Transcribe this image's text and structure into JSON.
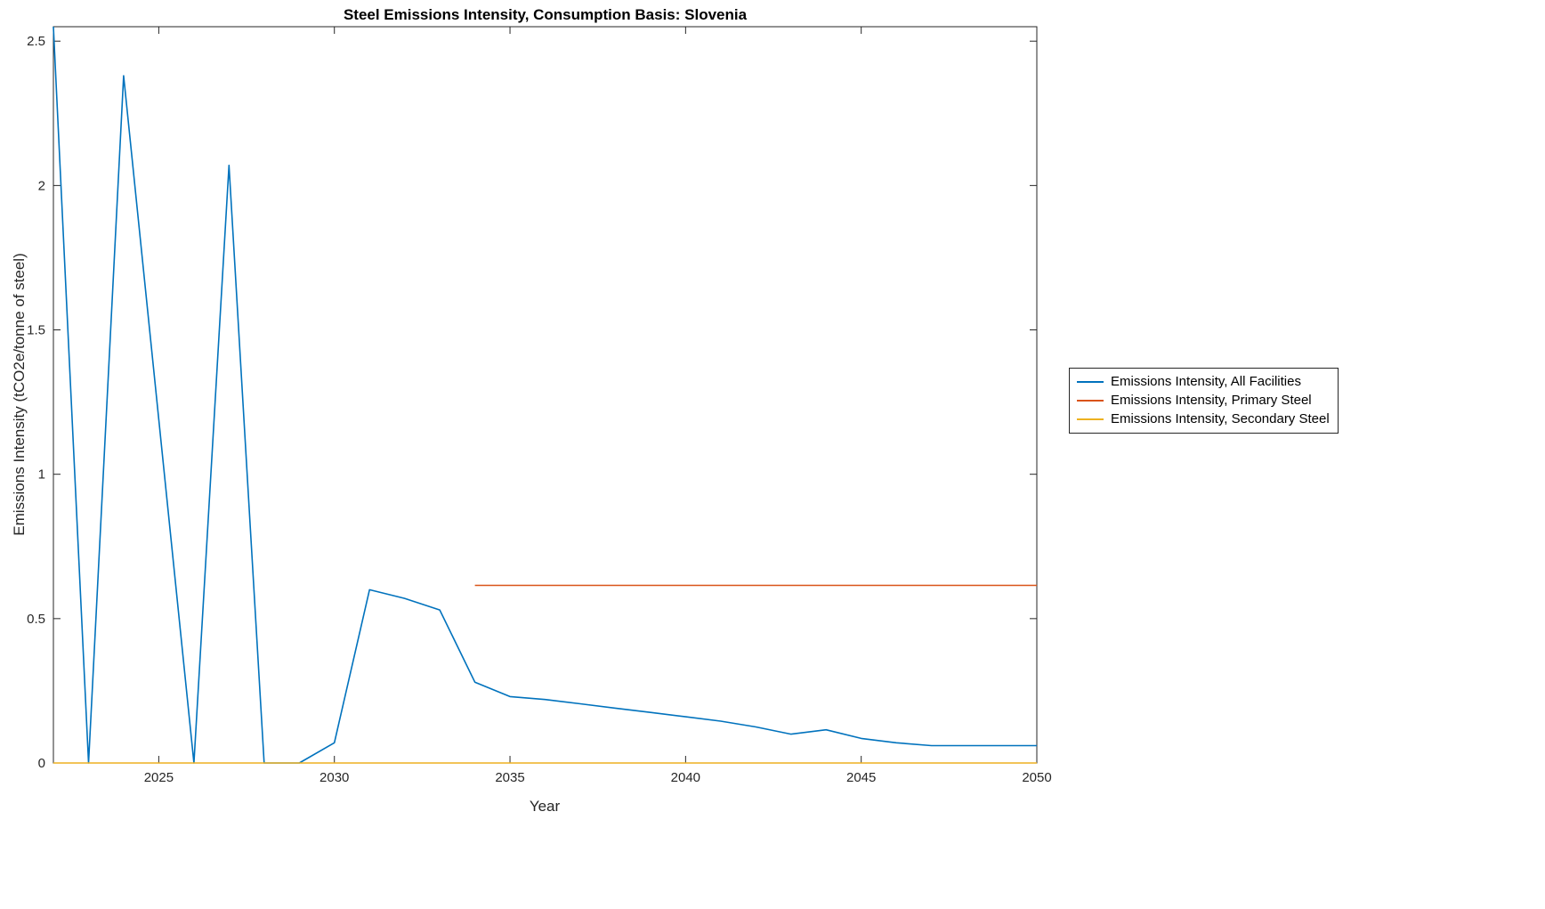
{
  "chart_data": {
    "type": "line",
    "title": "Steel Emissions Intensity, Consumption Basis: Slovenia",
    "xlabel": "Year",
    "ylabel": "Emissions Intensity (tCO2e/tonne of steel)",
    "xlim": [
      2022,
      2050
    ],
    "ylim": [
      0,
      2.55
    ],
    "xticks": [
      2025,
      2030,
      2035,
      2040,
      2045,
      2050
    ],
    "xtick_labels": [
      "2025",
      "2030",
      "2035",
      "2040",
      "2045",
      "2050"
    ],
    "yticks": [
      0,
      0.5,
      1,
      1.5,
      2,
      2.5
    ],
    "ytick_labels": [
      "0",
      "0.5",
      "1",
      "1.5",
      "2",
      "2.5"
    ],
    "grid": false,
    "legend_position": "outside-right",
    "axis_color": "#262626",
    "series": [
      {
        "name": "Emissions Intensity, All Facilities",
        "color": "#0072BD",
        "x": [
          2022,
          2023,
          2024,
          2025,
          2026,
          2027,
          2028,
          2029,
          2030,
          2031,
          2032,
          2033,
          2034,
          2035,
          2036,
          2037,
          2038,
          2039,
          2040,
          2041,
          2042,
          2043,
          2044,
          2045,
          2046,
          2047,
          2048,
          2049,
          2050
        ],
        "y": [
          2.55,
          0,
          2.38,
          1.19,
          0,
          2.07,
          0,
          0,
          0.07,
          0.6,
          0.57,
          0.53,
          0.28,
          0.23,
          0.22,
          0.205,
          0.19,
          0.175,
          0.16,
          0.145,
          0.125,
          0.1,
          0.115,
          0.085,
          0.07,
          0.06,
          0.06,
          0.06,
          0.06
        ]
      },
      {
        "name": "Emissions Intensity, Primary Steel",
        "color": "#D95319",
        "x": [
          2034,
          2035,
          2036,
          2037,
          2038,
          2039,
          2040,
          2041,
          2042,
          2043,
          2044,
          2045,
          2046,
          2047,
          2048,
          2049,
          2050
        ],
        "y": [
          0.615,
          0.615,
          0.615,
          0.615,
          0.615,
          0.615,
          0.615,
          0.615,
          0.615,
          0.615,
          0.615,
          0.615,
          0.615,
          0.615,
          0.615,
          0.615,
          0.615
        ]
      },
      {
        "name": "Emissions Intensity, Secondary Steel",
        "color": "#EDB120",
        "x": [
          2022,
          2023,
          2024,
          2025,
          2026,
          2027,
          2028,
          2029,
          2030,
          2031,
          2032,
          2033,
          2034,
          2035,
          2036,
          2037,
          2038,
          2039,
          2040,
          2041,
          2042,
          2043,
          2044,
          2045,
          2046,
          2047,
          2048,
          2049,
          2050
        ],
        "y": [
          0,
          0,
          0,
          0,
          0,
          0,
          0,
          0,
          0,
          0,
          0,
          0,
          0,
          0,
          0,
          0,
          0,
          0,
          0,
          0,
          0,
          0,
          0,
          0,
          0,
          0,
          0,
          0,
          0
        ]
      }
    ]
  }
}
